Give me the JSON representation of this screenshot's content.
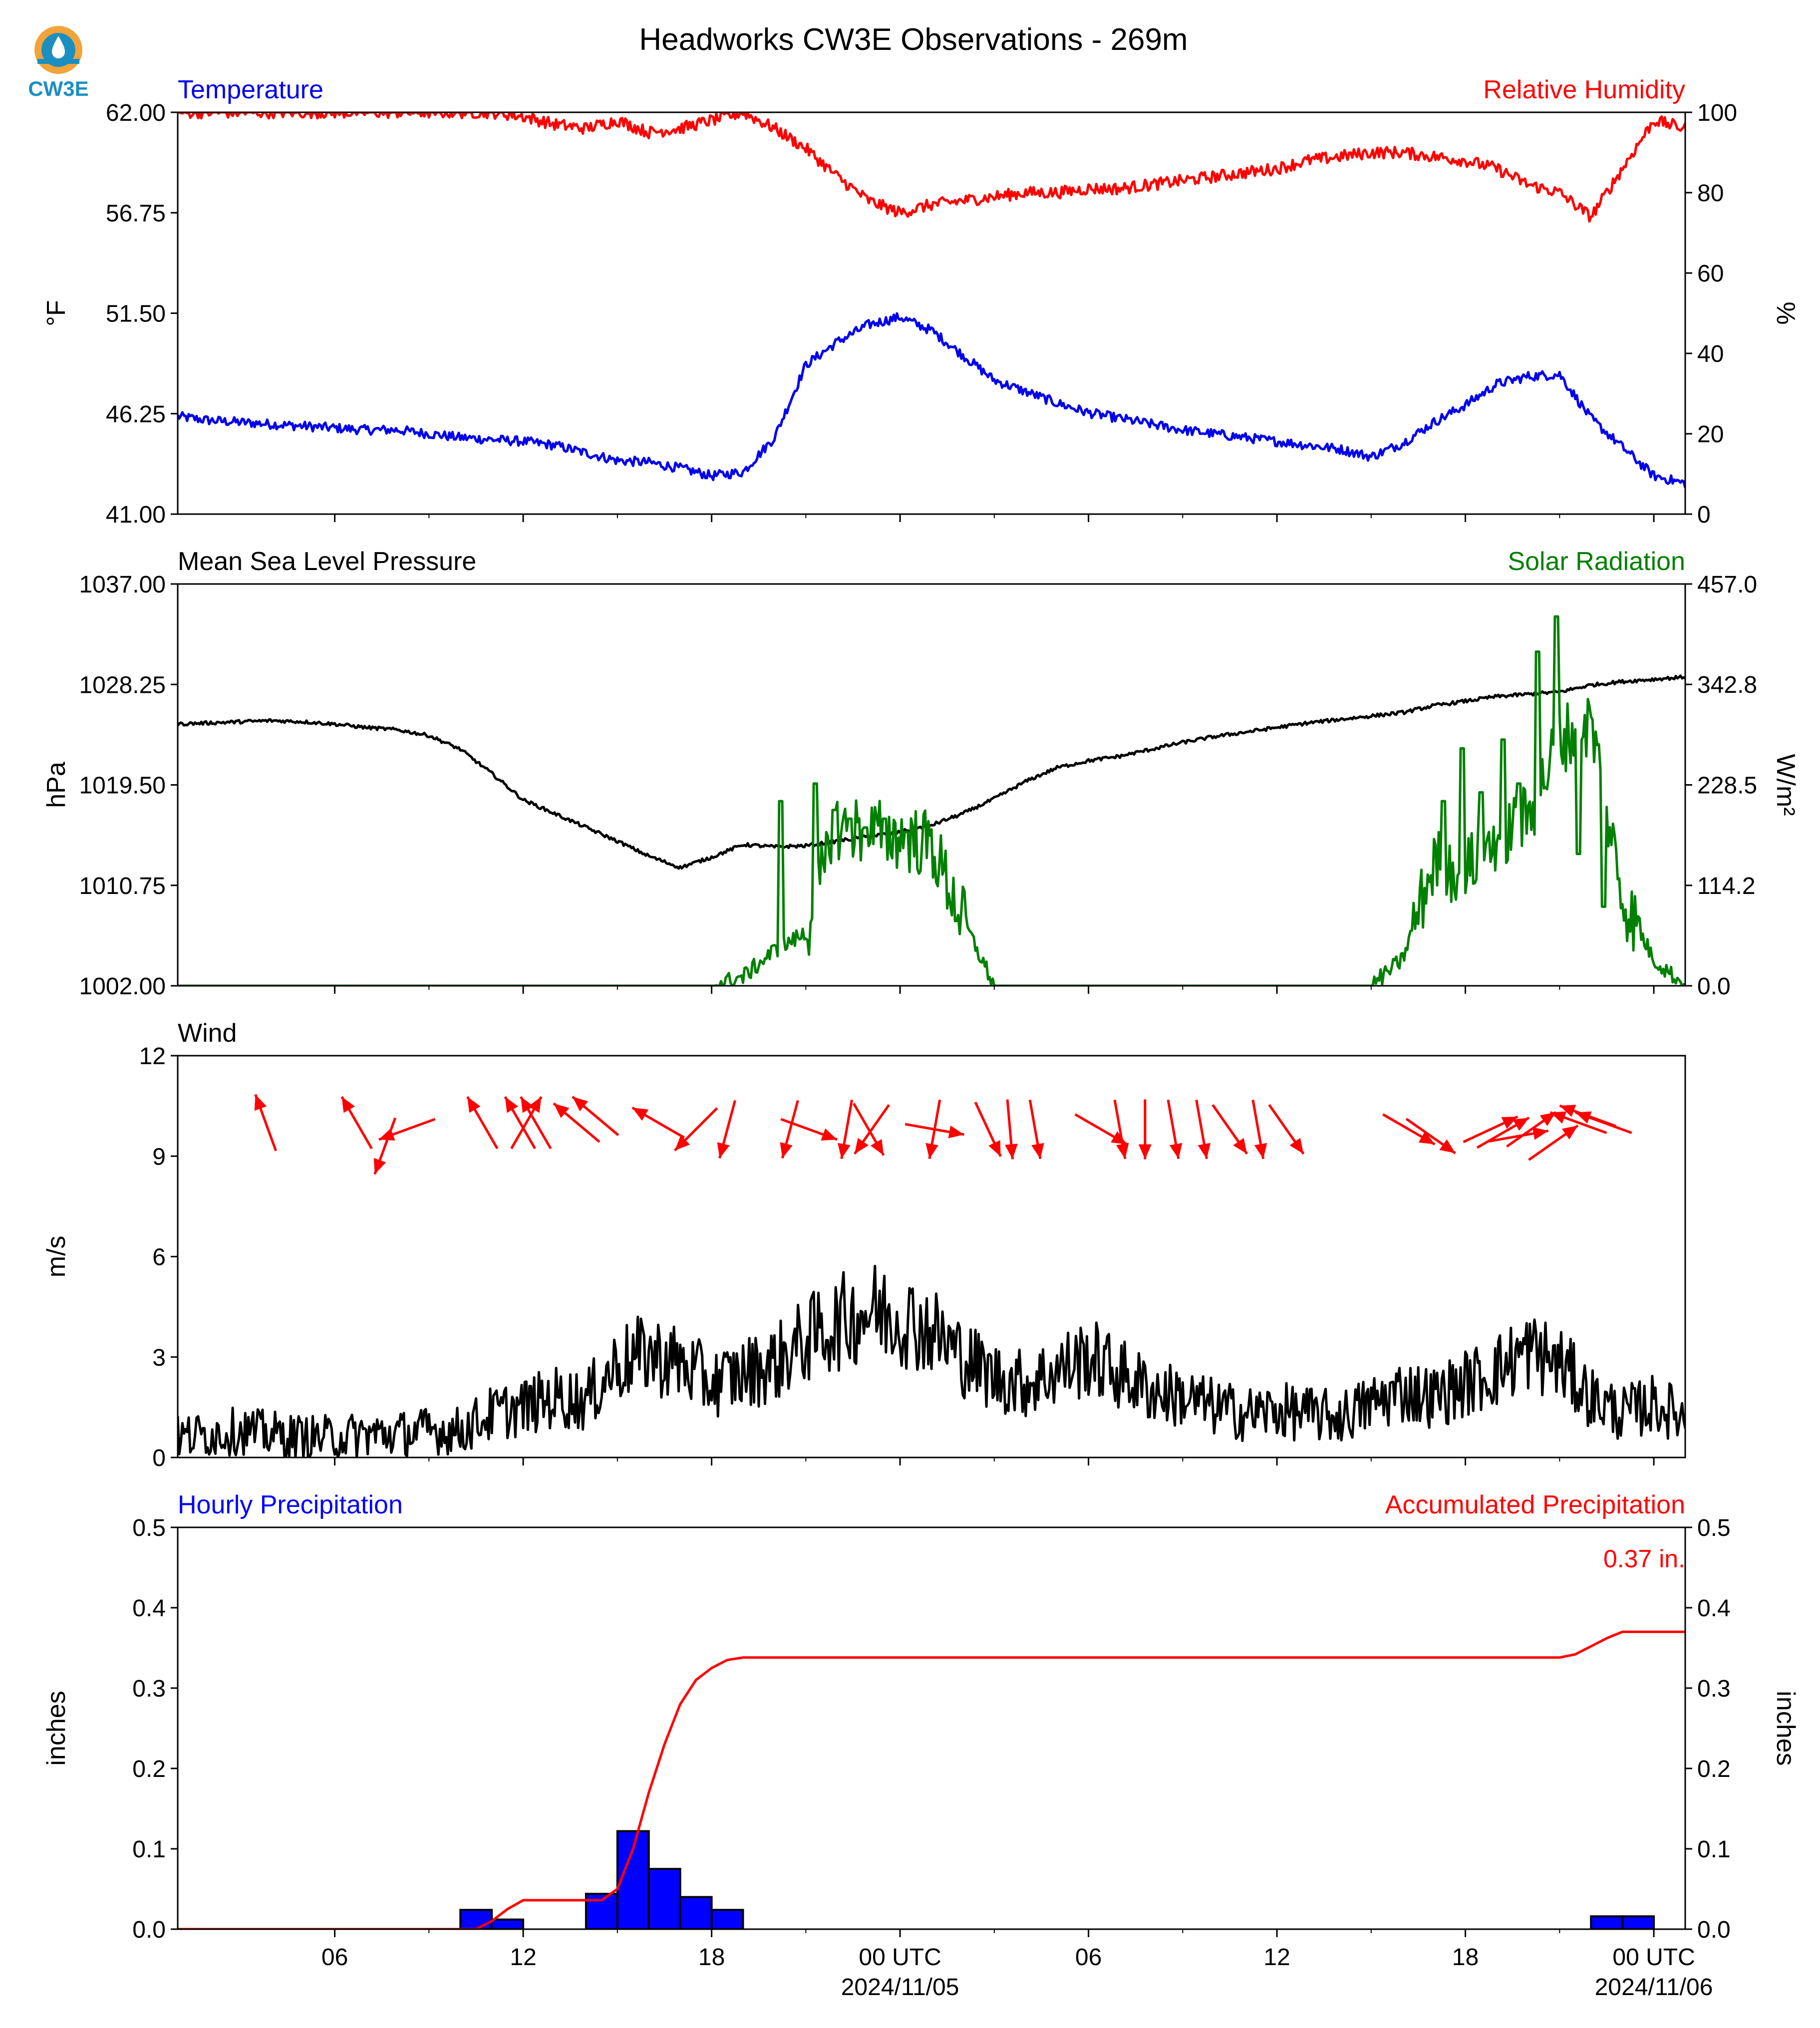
{
  "title": "Headworks CW3E Observations - 269m",
  "logo": {
    "text": "CW3E",
    "ring_color": "#f2a33a",
    "drop_color": "#1b8fc0"
  },
  "colors": {
    "temperature": "#0000ee",
    "humidity": "#ff0000",
    "pressure": "#000000",
    "solar": "#008000",
    "wind_speed": "#000000",
    "wind_arrows": "#ff0000",
    "hourly_bar": "#0000ff",
    "accum": "#ff0000"
  },
  "time_axis": {
    "start_hour": 0,
    "end_hour": 48,
    "ticks": [
      {
        "h": 5,
        "label": "06",
        "sub": ""
      },
      {
        "h": 11,
        "label": "12",
        "sub": ""
      },
      {
        "h": 17,
        "label": "18",
        "sub": ""
      },
      {
        "h": 23,
        "label": "00 UTC",
        "sub": "2024/11/05"
      },
      {
        "h": 29,
        "label": "06",
        "sub": ""
      },
      {
        "h": 35,
        "label": "12",
        "sub": ""
      },
      {
        "h": 41,
        "label": "18",
        "sub": ""
      },
      {
        "h": 47,
        "label": "00 UTC",
        "sub": "2024/11/06"
      }
    ],
    "minor_ticks": [
      8,
      14,
      20,
      26,
      32,
      38,
      44
    ]
  },
  "chart_data": [
    {
      "type": "line",
      "panel": "temperature_humidity",
      "left_title": "Temperature",
      "right_title": "Relative Humidity",
      "ylabel": "°F",
      "ylabel_right": "%",
      "ylim": [
        41.0,
        62.0
      ],
      "ylim_right": [
        0,
        100
      ],
      "yticks": [
        "41.00",
        "46.25",
        "51.50",
        "56.75",
        "62.00"
      ],
      "yticks_right": [
        "0",
        "20",
        "40",
        "60",
        "80",
        "100"
      ],
      "series": [
        {
          "name": "Temperature",
          "axis": "left",
          "x": [
            0,
            1,
            2,
            3,
            4,
            5,
            6,
            7,
            8,
            9,
            10,
            11,
            12,
            13,
            14,
            15,
            16,
            17,
            18,
            19,
            20,
            21,
            22,
            23,
            24,
            25,
            26,
            27,
            28,
            29,
            30,
            31,
            32,
            33,
            34,
            35,
            36,
            37,
            38,
            39,
            40,
            41,
            42,
            43,
            44,
            45,
            46,
            47,
            48
          ],
          "y": [
            46.1,
            45.9,
            45.8,
            45.7,
            45.6,
            45.5,
            45.4,
            45.4,
            45.2,
            45.0,
            44.9,
            44.8,
            44.6,
            44.2,
            43.8,
            43.7,
            43.4,
            43.0,
            43.2,
            45.0,
            48.8,
            50.0,
            50.9,
            51.3,
            50.6,
            49.3,
            48.0,
            47.4,
            46.8,
            46.3,
            46.0,
            45.7,
            45.4,
            45.2,
            45.0,
            44.8,
            44.6,
            44.4,
            44.0,
            44.7,
            45.8,
            46.7,
            47.8,
            48.2,
            48.3,
            46.0,
            44.5,
            43.0,
            42.6
          ],
          "noise": 0.25
        },
        {
          "name": "Relative Humidity",
          "axis": "right",
          "x": [
            0,
            1,
            2,
            3,
            4,
            5,
            6,
            7,
            8,
            9,
            10,
            11,
            12,
            13,
            14,
            15,
            16,
            17,
            18,
            19,
            20,
            21,
            22,
            23,
            24,
            25,
            26,
            27,
            28,
            29,
            30,
            31,
            32,
            33,
            34,
            35,
            36,
            37,
            38,
            39,
            40,
            41,
            42,
            43,
            44,
            45,
            46,
            47,
            48
          ],
          "y": [
            100,
            100,
            100,
            100,
            100,
            100,
            100,
            100,
            100,
            100,
            100,
            99,
            97,
            96,
            98,
            95,
            96,
            98,
            100,
            96,
            91,
            84,
            78,
            75,
            77,
            78,
            79,
            80,
            80,
            81,
            81,
            82,
            83,
            84,
            85,
            86,
            88,
            89,
            90,
            90,
            89,
            88,
            86,
            82,
            80,
            74,
            86,
            98,
            96
          ],
          "noise": 1.5
        }
      ]
    },
    {
      "type": "line",
      "panel": "pressure_solar",
      "left_title": "Mean Sea Level Pressure",
      "right_title": "Solar Radiation",
      "ylabel": "hPa",
      "ylabel_right": "W/m²",
      "ylim": [
        1002.0,
        1037.0
      ],
      "ylim_right": [
        0.0,
        457.0
      ],
      "yticks": [
        "1002.00",
        "1010.75",
        "1019.50",
        "1028.25",
        "1037.00"
      ],
      "yticks_right": [
        "0.0",
        "114.2",
        "228.5",
        "342.8",
        "457.0"
      ],
      "series": [
        {
          "name": "Mean Sea Level Pressure",
          "axis": "left",
          "x": [
            0,
            1,
            2,
            3,
            4,
            5,
            6,
            7,
            8,
            9,
            10,
            11,
            12,
            13,
            14,
            15,
            16,
            17,
            18,
            19,
            20,
            21,
            22,
            23,
            24,
            25,
            26,
            27,
            28,
            29,
            30,
            31,
            32,
            33,
            34,
            35,
            36,
            37,
            38,
            39,
            40,
            41,
            42,
            43,
            44,
            45,
            46,
            47,
            48
          ],
          "y": [
            1024.8,
            1024.9,
            1025.0,
            1025.1,
            1025.0,
            1024.8,
            1024.5,
            1024.3,
            1023.8,
            1022.6,
            1020.5,
            1018.2,
            1017.0,
            1015.8,
            1014.6,
            1013.3,
            1012.3,
            1013.2,
            1014.3,
            1014.1,
            1014.2,
            1014.6,
            1015.0,
            1015.4,
            1016.0,
            1017.0,
            1018.3,
            1019.8,
            1021.0,
            1021.6,
            1022.0,
            1022.6,
            1023.2,
            1023.7,
            1024.1,
            1024.5,
            1024.9,
            1025.2,
            1025.5,
            1025.8,
            1026.4,
            1026.8,
            1027.2,
            1027.4,
            1027.6,
            1028.2,
            1028.5,
            1028.7,
            1028.9
          ],
          "noise": 0.15
        },
        {
          "name": "Solar Radiation",
          "axis": "right",
          "x": [
            0,
            17,
            18,
            19,
            20,
            21,
            22,
            23,
            24,
            25,
            26,
            37,
            38,
            39,
            40,
            41,
            42,
            43,
            44,
            45,
            46,
            47,
            48
          ],
          "y": [
            0,
            0,
            10,
            40,
            60,
            180,
            175,
            170,
            160,
            75,
            0,
            0,
            0,
            30,
            140,
            130,
            170,
            190,
            280,
            300,
            100,
            30,
            0
          ],
          "spikes": [
            {
              "x": 19.2,
              "y": 210
            },
            {
              "x": 20.3,
              "y": 230
            },
            {
              "x": 20.9,
              "y": 200
            },
            {
              "x": 21.4,
              "y": 190
            },
            {
              "x": 21.9,
              "y": 180
            },
            {
              "x": 22.5,
              "y": 190
            },
            {
              "x": 23.2,
              "y": 175
            },
            {
              "x": 40.3,
              "y": 210
            },
            {
              "x": 40.9,
              "y": 270
            },
            {
              "x": 41.5,
              "y": 220
            },
            {
              "x": 42.2,
              "y": 280
            },
            {
              "x": 42.7,
              "y": 230
            },
            {
              "x": 43.3,
              "y": 380
            },
            {
              "x": 43.9,
              "y": 420
            },
            {
              "x": 44.6,
              "y": 150
            },
            {
              "x": 45.4,
              "y": 90
            }
          ],
          "noise": 25
        }
      ]
    },
    {
      "type": "line",
      "panel": "wind",
      "left_title": "Wind",
      "right_title": "",
      "ylabel": "m/s",
      "ylabel_right": "",
      "ylim": [
        0,
        12
      ],
      "yticks": [
        "0",
        "3",
        "6",
        "9",
        "12"
      ],
      "series": [
        {
          "name": "Wind",
          "axis": "left",
          "x": [
            0,
            1,
            2,
            3,
            4,
            5,
            6,
            7,
            8,
            9,
            10,
            11,
            12,
            13,
            14,
            15,
            16,
            17,
            18,
            19,
            20,
            21,
            22,
            23,
            24,
            25,
            26,
            27,
            28,
            29,
            30,
            31,
            32,
            33,
            34,
            35,
            36,
            37,
            38,
            39,
            40,
            41,
            42,
            43,
            44,
            45,
            46,
            47,
            48
          ],
          "y": [
            0.6,
            0.7,
            0.8,
            0.7,
            0.6,
            0.6,
            0.7,
            0.7,
            0.8,
            0.8,
            1.3,
            1.5,
            1.8,
            1.7,
            2.8,
            3.1,
            2.8,
            2.2,
            2.5,
            2.8,
            3.5,
            4.0,
            4.4,
            4.2,
            3.8,
            3.0,
            2.4,
            2.2,
            2.6,
            3.0,
            2.5,
            2.0,
            1.8,
            1.5,
            1.3,
            1.4,
            1.3,
            1.2,
            1.6,
            2.0,
            1.8,
            2.2,
            2.6,
            3.2,
            2.8,
            1.8,
            1.3,
            1.6,
            1.2
          ],
          "noise": 0.9
        },
        {
          "name": "Wind direction",
          "axis": "left",
          "type": "arrows",
          "arrows": [
            {
              "x": 2.8,
              "y": 10.0,
              "angle": -110
            },
            {
              "x": 5.7,
              "y": 10.0,
              "angle": -120
            },
            {
              "x": 7.3,
              "y": 9.8,
              "angle": 160
            },
            {
              "x": 6.6,
              "y": 9.3,
              "angle": 110
            },
            {
              "x": 9.7,
              "y": 10.0,
              "angle": -120
            },
            {
              "x": 10.9,
              "y": 10.0,
              "angle": -120
            },
            {
              "x": 11.1,
              "y": 10.0,
              "angle": -60
            },
            {
              "x": 11.4,
              "y": 10.0,
              "angle": -120
            },
            {
              "x": 12.7,
              "y": 10.0,
              "angle": -140
            },
            {
              "x": 13.3,
              "y": 10.2,
              "angle": -140
            },
            {
              "x": 15.3,
              "y": 10.0,
              "angle": -150
            },
            {
              "x": 16.5,
              "y": 9.8,
              "angle": 135
            },
            {
              "x": 17.5,
              "y": 9.8,
              "angle": 105
            },
            {
              "x": 19.5,
              "y": 9.8,
              "angle": 105
            },
            {
              "x": 20.1,
              "y": 9.8,
              "angle": 20
            },
            {
              "x": 21.3,
              "y": 9.8,
              "angle": 100
            },
            {
              "x": 22.1,
              "y": 9.8,
              "angle": 125
            },
            {
              "x": 22.0,
              "y": 9.8,
              "angle": 60
            },
            {
              "x": 24.1,
              "y": 9.8,
              "angle": 100
            },
            {
              "x": 24.1,
              "y": 9.8,
              "angle": 10
            },
            {
              "x": 25.8,
              "y": 9.8,
              "angle": 65
            },
            {
              "x": 26.5,
              "y": 9.8,
              "angle": 85
            },
            {
              "x": 27.3,
              "y": 9.8,
              "angle": 80
            },
            {
              "x": 29.4,
              "y": 9.8,
              "angle": 30
            },
            {
              "x": 30.0,
              "y": 9.8,
              "angle": 80
            },
            {
              "x": 30.8,
              "y": 9.8,
              "angle": 90
            },
            {
              "x": 31.7,
              "y": 9.8,
              "angle": 80
            },
            {
              "x": 32.6,
              "y": 9.8,
              "angle": 80
            },
            {
              "x": 33.5,
              "y": 9.8,
              "angle": 55
            },
            {
              "x": 34.4,
              "y": 9.8,
              "angle": 80
            },
            {
              "x": 35.3,
              "y": 9.8,
              "angle": 55
            },
            {
              "x": 39.2,
              "y": 9.8,
              "angle": 30
            },
            {
              "x": 39.9,
              "y": 9.6,
              "angle": 35
            },
            {
              "x": 41.8,
              "y": 9.8,
              "angle": -25
            },
            {
              "x": 42.2,
              "y": 9.7,
              "angle": -30
            },
            {
              "x": 42.7,
              "y": 9.6,
              "angle": -10
            },
            {
              "x": 43.1,
              "y": 9.8,
              "angle": -35
            },
            {
              "x": 43.8,
              "y": 9.4,
              "angle": -35
            },
            {
              "x": 44.6,
              "y": 10.0,
              "angle": -160
            },
            {
              "x": 44.9,
              "y": 10.2,
              "angle": -160
            },
            {
              "x": 45.4,
              "y": 10.0,
              "angle": -160
            }
          ]
        }
      ]
    },
    {
      "type": "bar",
      "panel": "precipitation",
      "left_title": "Hourly Precipitation",
      "right_title": "Accumulated Precipitation",
      "ylabel": "inches",
      "ylabel_right": "inches",
      "ylim": [
        0.0,
        0.5
      ],
      "ylim_right": [
        0.0,
        0.5
      ],
      "yticks": [
        "0.0",
        "0.1",
        "0.2",
        "0.3",
        "0.4",
        "0.5"
      ],
      "yticks_right": [
        "0.0",
        "0.1",
        "0.2",
        "0.3",
        "0.4",
        "0.5"
      ],
      "total_label": "0.37 in.",
      "series": [
        {
          "name": "Hourly Precipitation",
          "axis": "left",
          "bars": [
            {
              "x": 9,
              "v": 0.024
            },
            {
              "x": 10,
              "v": 0.012
            },
            {
              "x": 13,
              "v": 0.044
            },
            {
              "x": 14,
              "v": 0.122
            },
            {
              "x": 15,
              "v": 0.075
            },
            {
              "x": 16,
              "v": 0.04
            },
            {
              "x": 17,
              "v": 0.024
            },
            {
              "x": 45,
              "v": 0.016
            },
            {
              "x": 46,
              "v": 0.016
            }
          ]
        },
        {
          "name": "Accumulated Precipitation",
          "axis": "right",
          "x": [
            0,
            9.5,
            10,
            10.5,
            11,
            13.5,
            14,
            14.5,
            15,
            15.5,
            16,
            16.5,
            17,
            17.5,
            18,
            18.5,
            44,
            44.5,
            45,
            45.5,
            46,
            46.5,
            48
          ],
          "y": [
            0,
            0,
            0.01,
            0.025,
            0.036,
            0.036,
            0.05,
            0.1,
            0.17,
            0.23,
            0.28,
            0.31,
            0.325,
            0.335,
            0.338,
            0.338,
            0.338,
            0.342,
            0.352,
            0.362,
            0.37,
            0.37,
            0.37
          ]
        }
      ]
    }
  ]
}
